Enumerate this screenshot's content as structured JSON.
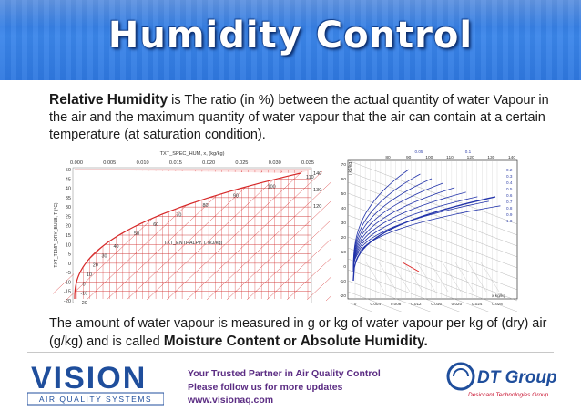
{
  "slide": {
    "title": "Humidity Control",
    "para1": {
      "term": "Relative Humidity",
      "text": " is The ratio (in %) between the actual quantity of water Vapour in the air and the maximum quantity of water vapour that the air can contain at a certain temperature (at saturation condition)."
    },
    "para2": {
      "text": "The amount of water vapour is measured in g or kg of water vapour per kg of (dry) air (g/kg) and is called ",
      "term1": "Moisture Content",
      "or": " or ",
      "term2": "Absolute Humidity."
    }
  },
  "chart_left": {
    "top_label": "TXT_SPEC_HUM, x, (kg/kg)",
    "y_label": "TXT_TEMP_DRY_BULB, T (°C)",
    "enthalpy_label": "TXT_ENTHALPY, i, (kJ/kg)",
    "x_ticks": [
      "0.000",
      "0.005",
      "0.010",
      "0.015",
      "0.020",
      "0.025",
      "0.030",
      "0.035"
    ],
    "y_ticks": [
      "50",
      "45",
      "40",
      "35",
      "30",
      "25",
      "20",
      "15",
      "10",
      "5",
      "0",
      "-5",
      "-10",
      "-15",
      "-20"
    ],
    "right_ticks": [
      "140",
      "130",
      "120"
    ],
    "enthalpy_ticks": [
      "-20",
      "-10",
      "0",
      "10",
      "20",
      "30",
      "40",
      "50",
      "60",
      "70",
      "80",
      "90",
      "100",
      "110"
    ]
  },
  "chart_right": {
    "top_ticks": [
      "80",
      "90",
      "100",
      "110",
      "120",
      "130",
      "140"
    ],
    "top_small": [
      "0.05",
      "0.1"
    ],
    "y_ticks": [
      "70",
      "60",
      "50",
      "40",
      "30",
      "20",
      "10",
      "0",
      "-10",
      "-20"
    ],
    "y_label": "i kJ/kg",
    "x_ticks": [
      "0",
      "0.004",
      "0.008",
      "0.012",
      "0.016",
      "0.020",
      "0.024",
      "0.028"
    ],
    "x_label": "x kg/kg",
    "rh_ticks": [
      "0.2",
      "0.3",
      "0.4",
      "0.5",
      "0.6",
      "0.7",
      "0.8",
      "0.9",
      "1.0"
    ]
  },
  "footer": {
    "vision_logo_text": "VISION",
    "vision_sub": "AIR QUALITY SYSTEMS",
    "line1": "Your Trusted Partner in Air Quality Control",
    "line2": "Please follow us for more updates",
    "line3": "www.visionaq.com",
    "dt_logo_text": "DT Group",
    "dt_sub": "Desiccant Technologies Group"
  },
  "colors": {
    "banner": "#2f78e0",
    "chart_left": "#d62828",
    "chart_right": "#2233aa",
    "footer_text": "#5b2c83",
    "vision": "#1f4e9c",
    "dt": "#1f4e9c",
    "dt_sub": "#c8102e"
  }
}
